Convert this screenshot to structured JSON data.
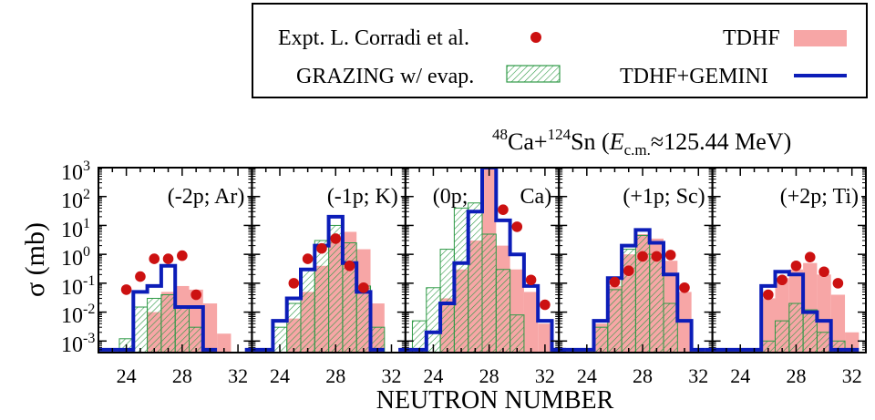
{
  "chart_data": {
    "type": "bar",
    "reaction": {
      "a1": "48",
      "e1": "Ca",
      "sep": "+",
      "a2": "124",
      "e2": "Sn",
      "open": " (",
      "E": "E",
      "sub": "c.m.",
      "approx": "≈125.44 MeV)"
    },
    "xlabel": "NEUTRON NUMBER",
    "ylabel": "σ (mb)",
    "x_ticks": [
      "24",
      "28",
      "32"
    ],
    "y_ticks": [
      {
        "base": "10",
        "exp": "3"
      },
      {
        "base": "10",
        "exp": "2"
      },
      {
        "base": "10",
        "exp": "1"
      },
      {
        "base": "10",
        "exp": "0"
      },
      {
        "base": "10",
        "exp": "-1"
      },
      {
        "base": "10",
        "exp": "-2"
      },
      {
        "base": "10",
        "exp": "-3"
      }
    ],
    "xlim": [
      22,
      33
    ],
    "ylim_log10": [
      -3.4,
      3
    ],
    "scale_y": "log",
    "legend": {
      "placement": "top-right",
      "entries": [
        {
          "label": "Expt. L. Corradi et al.",
          "symbol": "dot",
          "color": "#cc1111"
        },
        {
          "label": "TDHF",
          "symbol": "fill",
          "color": "#f7a6a6"
        },
        {
          "label": "GRAZING w/ evap.",
          "symbol": "hatch",
          "color": "#2e9a46"
        },
        {
          "label": "TDHF+GEMINI",
          "symbol": "line",
          "color": "#0c1db8"
        }
      ]
    },
    "colors": {
      "tdhf": "#f7a6a6",
      "grazing": "#2e9a46",
      "gemini": "#0c1db8",
      "expt": "#cc1111"
    },
    "panels": [
      {
        "label": "(-2p; Ar)",
        "tdhf": [
          [
            23,
            0
          ],
          [
            24,
            0
          ],
          [
            25,
            0
          ],
          [
            26,
            0.01
          ],
          [
            27,
            0.05
          ],
          [
            28,
            0.08
          ],
          [
            29,
            0.06
          ],
          [
            30,
            0.02
          ],
          [
            31,
            0.0018
          ]
        ],
        "grazing": [
          [
            24,
            0.0012
          ],
          [
            25,
            0.015
          ],
          [
            26,
            0.03
          ],
          [
            27,
            0.04
          ],
          [
            28,
            0.015
          ],
          [
            29,
            0.003
          ]
        ],
        "gemini": [
          [
            22,
            0.0005
          ],
          [
            23,
            0.0005
          ],
          [
            24,
            0.0005
          ],
          [
            25,
            0.05
          ],
          [
            26,
            0.08
          ],
          [
            27,
            0.4
          ],
          [
            28,
            0.015
          ],
          [
            29,
            0.015
          ],
          [
            30,
            0.0005
          ]
        ],
        "expt": [
          [
            24,
            0.06
          ],
          [
            25,
            0.17
          ],
          [
            26,
            0.7
          ],
          [
            27,
            0.7
          ],
          [
            28,
            0.9
          ],
          [
            29,
            0.04
          ]
        ]
      },
      {
        "label": "(-1p; K)",
        "tdhf": [
          [
            25,
            0.006
          ],
          [
            26,
            0.05
          ],
          [
            27,
            0.4
          ],
          [
            28,
            3
          ],
          [
            29,
            6
          ],
          [
            30,
            1.5
          ],
          [
            31,
            0.02
          ]
        ],
        "grazing": [
          [
            24,
            0.003
          ],
          [
            25,
            0.02
          ],
          [
            26,
            0.3
          ],
          [
            27,
            3
          ],
          [
            28,
            10
          ],
          [
            29,
            2.5
          ],
          [
            30,
            0.08
          ],
          [
            31,
            0.003
          ]
        ],
        "gemini": [
          [
            22,
            0.0005
          ],
          [
            23,
            0.0005
          ],
          [
            24,
            0.005
          ],
          [
            25,
            0.03
          ],
          [
            26,
            0.3
          ],
          [
            27,
            2
          ],
          [
            28,
            20
          ],
          [
            29,
            0.5
          ],
          [
            30,
            0.05
          ],
          [
            31,
            0.0005
          ]
        ],
        "expt": [
          [
            25,
            0.1
          ],
          [
            26,
            0.7
          ],
          [
            27,
            1.6
          ],
          [
            28,
            3.5
          ],
          [
            29,
            0.4
          ],
          [
            30,
            0.07
          ]
        ]
      },
      {
        "label": "(0p;",
        "label2": "Ca)",
        "tdhf": [
          [
            25,
            0.03
          ],
          [
            26,
            0.3
          ],
          [
            27,
            3
          ],
          [
            28,
            1000
          ],
          [
            29,
            2
          ],
          [
            30,
            0.3
          ],
          [
            31,
            0.05
          ],
          [
            32,
            0.004
          ]
        ],
        "grazing": [
          [
            23,
            0.005
          ],
          [
            24,
            0.07
          ],
          [
            25,
            1.5
          ],
          [
            26,
            40
          ],
          [
            27,
            60
          ],
          [
            28,
            5
          ],
          [
            29,
            0.3
          ],
          [
            30,
            0.008
          ]
        ],
        "gemini": [
          [
            22,
            0.0005
          ],
          [
            23,
            0.0005
          ],
          [
            24,
            0.002
          ],
          [
            25,
            0.02
          ],
          [
            26,
            0.5
          ],
          [
            27,
            30
          ],
          [
            28,
            2000
          ],
          [
            29,
            15
          ],
          [
            30,
            1
          ],
          [
            31,
            0.08
          ],
          [
            32,
            0.005
          ],
          [
            33,
            0.0005
          ]
        ],
        "expt": [
          [
            29,
            35
          ],
          [
            30,
            9
          ],
          [
            31,
            0.13
          ],
          [
            32,
            0.018
          ]
        ]
      },
      {
        "label": "(+1p; Sc)",
        "tdhf": [
          [
            25,
            0.004
          ],
          [
            26,
            0.08
          ],
          [
            27,
            1
          ],
          [
            28,
            5
          ],
          [
            29,
            3.5
          ],
          [
            30,
            0.6
          ],
          [
            31,
            0.05
          ]
        ],
        "grazing": [
          [
            25,
            0.003
          ],
          [
            26,
            0.06
          ],
          [
            27,
            1.5
          ],
          [
            28,
            4.5
          ],
          [
            29,
            1
          ],
          [
            30,
            0.02
          ]
        ],
        "gemini": [
          [
            22,
            0.0005
          ],
          [
            23,
            0.0005
          ],
          [
            24,
            0.0005
          ],
          [
            25,
            0.005
          ],
          [
            26,
            0.15
          ],
          [
            27,
            2
          ],
          [
            28,
            7
          ],
          [
            29,
            2.5
          ],
          [
            30,
            0.2
          ],
          [
            31,
            0.005
          ],
          [
            32,
            0.0005
          ]
        ],
        "expt": [
          [
            26,
            0.11
          ],
          [
            27,
            0.27
          ],
          [
            28,
            0.85
          ],
          [
            29,
            0.85
          ],
          [
            30,
            0.95
          ],
          [
            31,
            0.07
          ]
        ]
      },
      {
        "label": "(+2p; Ti)",
        "tdhf": [
          [
            26,
            0.03
          ],
          [
            27,
            0.15
          ],
          [
            28,
            0.3
          ],
          [
            29,
            0.5
          ],
          [
            30,
            0.2
          ],
          [
            31,
            0.04
          ],
          [
            32,
            0.002
          ]
        ],
        "grazing": [
          [
            26,
            0.001
          ],
          [
            27,
            0.005
          ],
          [
            28,
            0.02
          ],
          [
            29,
            0.012
          ],
          [
            30,
            0.002
          ],
          [
            31,
            0.001
          ]
        ],
        "gemini": [
          [
            22,
            0.0005
          ],
          [
            23,
            0.0005
          ],
          [
            24,
            0.0005
          ],
          [
            25,
            0.0005
          ],
          [
            26,
            0.08
          ],
          [
            27,
            0.25
          ],
          [
            28,
            0.2
          ],
          [
            29,
            0.01
          ],
          [
            30,
            0.005
          ],
          [
            31,
            0.0005
          ],
          [
            32,
            0.0005
          ]
        ],
        "expt": [
          [
            26,
            0.04
          ],
          [
            27,
            0.13
          ],
          [
            28,
            0.4
          ],
          [
            29,
            0.8
          ],
          [
            30,
            0.25
          ],
          [
            31,
            0.1
          ]
        ]
      }
    ]
  }
}
